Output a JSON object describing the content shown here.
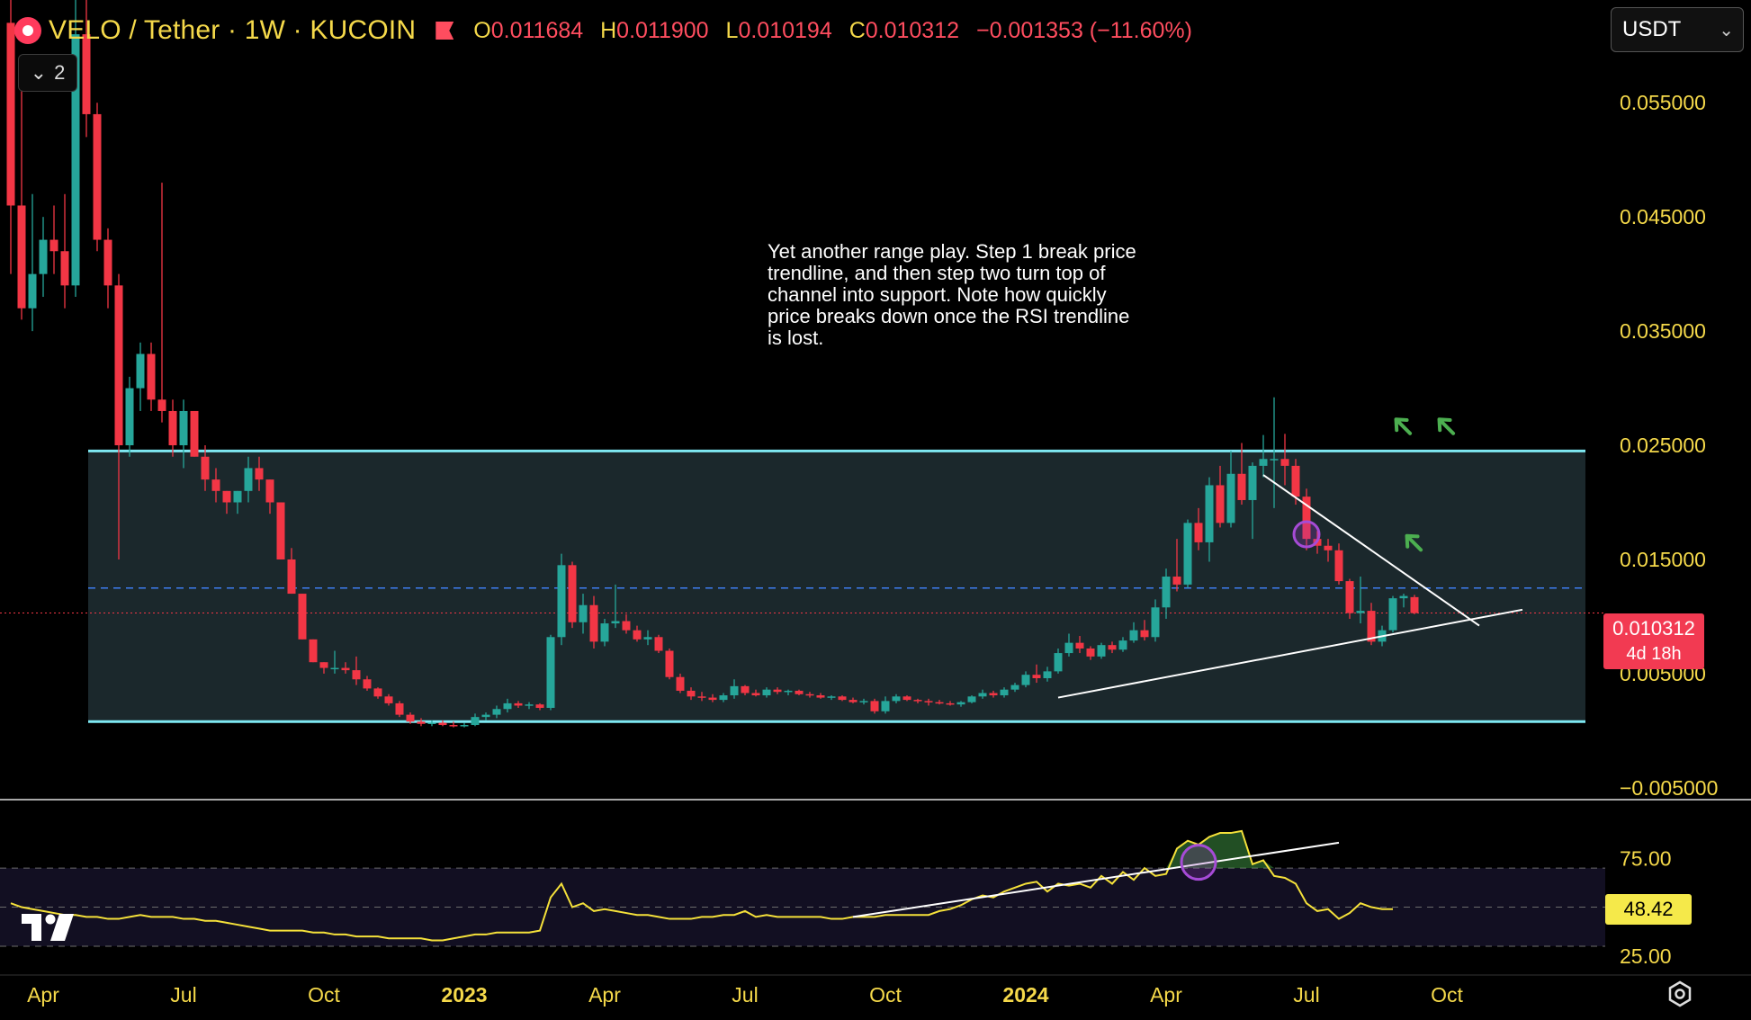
{
  "header": {
    "symbol": "VELO / Tether · 1W · KUCOIN",
    "open_label": "O",
    "open_value": "0.011684",
    "high_label": "H",
    "high_value": "0.011900",
    "low_label": "L",
    "low_value": "0.010194",
    "close_label": "C",
    "close_value": "0.010312",
    "change": "−0.001353 (−11.60%)"
  },
  "collapse_label": "2",
  "currency_select": "USDT",
  "annotation_text": "Yet another range play. Step 1 break price trendline, and then step two turn top of channel into support. Note how quickly price breaks down once the RSI trendline is lost.",
  "price_tag": {
    "price": "0.010312",
    "countdown": "4d 18h"
  },
  "rsi_tag": "48.42",
  "colors": {
    "up": "#26a69a",
    "down": "#f23645",
    "channel": "#7ee8f2",
    "rsi": "#f5e13a",
    "axis_text": "#f5d94a"
  },
  "chart_data": [
    {
      "type": "candlestick",
      "timeframe": "1W",
      "y_axis_labels": [
        "0.055000",
        "0.045000",
        "0.035000",
        "0.025000",
        "0.015000",
        "0.005000",
        "−0.005000"
      ],
      "y_ticks": [
        0.055,
        0.045,
        0.035,
        0.025,
        0.015,
        0.005,
        -0.005
      ],
      "ylim": [
        -0.0058,
        0.064
      ],
      "x_axis_labels": [
        {
          "label": "Apr",
          "bold": false,
          "idx": 3
        },
        {
          "label": "Jul",
          "bold": false,
          "idx": 16
        },
        {
          "label": "Oct",
          "bold": false,
          "idx": 29
        },
        {
          "label": "2023",
          "bold": true,
          "idx": 42
        },
        {
          "label": "Apr",
          "bold": false,
          "idx": 55
        },
        {
          "label": "Jul",
          "bold": false,
          "idx": 68
        },
        {
          "label": "Oct",
          "bold": false,
          "idx": 81
        },
        {
          "label": "2024",
          "bold": true,
          "idx": 94
        },
        {
          "label": "Apr",
          "bold": false,
          "idx": 107
        },
        {
          "label": "Jul",
          "bold": false,
          "idx": 120
        },
        {
          "label": "Oct",
          "bold": false,
          "idx": 133
        }
      ],
      "candles": [
        [
          0.062,
          0.065,
          0.04,
          0.046
        ],
        [
          0.046,
          0.056,
          0.036,
          0.037
        ],
        [
          0.037,
          0.047,
          0.035,
          0.04
        ],
        [
          0.04,
          0.045,
          0.038,
          0.043
        ],
        [
          0.043,
          0.046,
          0.04,
          0.042
        ],
        [
          0.042,
          0.047,
          0.037,
          0.039
        ],
        [
          0.039,
          0.064,
          0.038,
          0.061
        ],
        [
          0.061,
          0.065,
          0.052,
          0.054
        ],
        [
          0.054,
          0.055,
          0.042,
          0.043
        ],
        [
          0.043,
          0.044,
          0.037,
          0.039
        ],
        [
          0.039,
          0.04,
          0.015,
          0.025
        ],
        [
          0.025,
          0.031,
          0.024,
          0.03
        ],
        [
          0.03,
          0.034,
          0.028,
          0.033
        ],
        [
          0.033,
          0.034,
          0.028,
          0.029
        ],
        [
          0.029,
          0.048,
          0.027,
          0.028
        ],
        [
          0.028,
          0.029,
          0.024,
          0.025
        ],
        [
          0.025,
          0.029,
          0.023,
          0.028
        ],
        [
          0.028,
          0.028,
          0.024,
          0.024
        ],
        [
          0.024,
          0.025,
          0.021,
          0.022
        ],
        [
          0.022,
          0.023,
          0.02,
          0.021
        ],
        [
          0.021,
          0.021,
          0.019,
          0.02
        ],
        [
          0.02,
          0.021,
          0.019,
          0.021
        ],
        [
          0.021,
          0.024,
          0.02,
          0.023
        ],
        [
          0.023,
          0.024,
          0.021,
          0.022
        ],
        [
          0.022,
          0.022,
          0.019,
          0.02
        ],
        [
          0.02,
          0.02,
          0.015,
          0.015
        ],
        [
          0.015,
          0.016,
          0.012,
          0.012
        ],
        [
          0.012,
          0.012,
          0.008,
          0.008
        ],
        [
          0.008,
          0.008,
          0.006,
          0.006
        ],
        [
          0.006,
          0.006,
          0.005,
          0.0055
        ],
        [
          0.0055,
          0.007,
          0.005,
          0.0055
        ],
        [
          0.0055,
          0.006,
          0.005,
          0.0053
        ],
        [
          0.0053,
          0.0065,
          0.004,
          0.0045
        ],
        [
          0.0045,
          0.0048,
          0.0035,
          0.0037
        ],
        [
          0.0037,
          0.0038,
          0.0028,
          0.003
        ],
        [
          0.003,
          0.0032,
          0.0022,
          0.0024
        ],
        [
          0.0024,
          0.0026,
          0.0012,
          0.0014
        ],
        [
          0.0014,
          0.0016,
          0.0006,
          0.0008
        ],
        [
          0.0008,
          0.0011,
          0.0004,
          0.0006
        ],
        [
          0.0006,
          0.0009,
          0.0004,
          0.0007
        ],
        [
          0.0007,
          0.0009,
          0.0004,
          0.0005
        ],
        [
          0.0005,
          0.0008,
          0.0003,
          0.0004
        ],
        [
          0.0004,
          0.0007,
          0.0003,
          0.0005
        ],
        [
          0.0005,
          0.0015,
          0.0004,
          0.0012
        ],
        [
          0.0012,
          0.0016,
          0.0009,
          0.0014
        ],
        [
          0.0014,
          0.0022,
          0.0011,
          0.0019
        ],
        [
          0.0019,
          0.0028,
          0.0016,
          0.0024
        ],
        [
          0.0024,
          0.0026,
          0.002,
          0.0022
        ],
        [
          0.0022,
          0.0025,
          0.0019,
          0.0023
        ],
        [
          0.0023,
          0.0024,
          0.0018,
          0.002
        ],
        [
          0.002,
          0.0084,
          0.0018,
          0.0082
        ],
        [
          0.0082,
          0.0155,
          0.0075,
          0.0145
        ],
        [
          0.0145,
          0.0148,
          0.009,
          0.0095
        ],
        [
          0.0095,
          0.012,
          0.0085,
          0.011
        ],
        [
          0.011,
          0.0118,
          0.0072,
          0.0078
        ],
        [
          0.0078,
          0.0098,
          0.0074,
          0.0094
        ],
        [
          0.0094,
          0.0128,
          0.009,
          0.0096
        ],
        [
          0.0096,
          0.0102,
          0.0085,
          0.0088
        ],
        [
          0.0088,
          0.0092,
          0.0078,
          0.008
        ],
        [
          0.008,
          0.0088,
          0.0075,
          0.0082
        ],
        [
          0.0082,
          0.0084,
          0.0068,
          0.007
        ],
        [
          0.007,
          0.0072,
          0.0045,
          0.0047
        ],
        [
          0.0047,
          0.005,
          0.0033,
          0.0035
        ],
        [
          0.0035,
          0.0038,
          0.0027,
          0.003
        ],
        [
          0.003,
          0.0034,
          0.0026,
          0.0029
        ],
        [
          0.0029,
          0.0032,
          0.0025,
          0.0027
        ],
        [
          0.0027,
          0.0033,
          0.0025,
          0.0031
        ],
        [
          0.0031,
          0.0045,
          0.0028,
          0.0039
        ],
        [
          0.0039,
          0.004,
          0.0031,
          0.0033
        ],
        [
          0.0033,
          0.0036,
          0.003,
          0.0031
        ],
        [
          0.0031,
          0.0038,
          0.0029,
          0.0036
        ],
        [
          0.0036,
          0.0038,
          0.0032,
          0.0034
        ],
        [
          0.0034,
          0.0036,
          0.0031,
          0.0035
        ],
        [
          0.0035,
          0.0036,
          0.0031,
          0.0032
        ],
        [
          0.0032,
          0.0034,
          0.0029,
          0.0031
        ],
        [
          0.0031,
          0.0033,
          0.0028,
          0.0029
        ],
        [
          0.0029,
          0.0031,
          0.0027,
          0.003
        ],
        [
          0.003,
          0.0031,
          0.0026,
          0.0027
        ],
        [
          0.0027,
          0.0029,
          0.0024,
          0.0025
        ],
        [
          0.0025,
          0.0028,
          0.0023,
          0.0026
        ],
        [
          0.0026,
          0.0028,
          0.0015,
          0.0017
        ],
        [
          0.0017,
          0.003,
          0.0015,
          0.0026
        ],
        [
          0.0026,
          0.0032,
          0.0024,
          0.003
        ],
        [
          0.003,
          0.0031,
          0.0026,
          0.0027
        ],
        [
          0.0027,
          0.0028,
          0.0024,
          0.0026
        ],
        [
          0.0026,
          0.0028,
          0.0022,
          0.0025
        ],
        [
          0.0025,
          0.0027,
          0.0023,
          0.0024
        ],
        [
          0.0024,
          0.0026,
          0.0022,
          0.0023
        ],
        [
          0.0023,
          0.0026,
          0.0021,
          0.0025
        ],
        [
          0.0025,
          0.0031,
          0.0024,
          0.003
        ],
        [
          0.003,
          0.0036,
          0.0028,
          0.0033
        ],
        [
          0.0033,
          0.0035,
          0.0029,
          0.0031
        ],
        [
          0.0031,
          0.0038,
          0.0029,
          0.0036
        ],
        [
          0.0036,
          0.0042,
          0.0034,
          0.004
        ],
        [
          0.004,
          0.0052,
          0.0038,
          0.0049
        ],
        [
          0.0049,
          0.0058,
          0.0042,
          0.0046
        ],
        [
          0.0046,
          0.0056,
          0.0043,
          0.0052
        ],
        [
          0.0052,
          0.0072,
          0.005,
          0.0068
        ],
        [
          0.0068,
          0.0085,
          0.0065,
          0.0077
        ],
        [
          0.0077,
          0.0083,
          0.0068,
          0.0072
        ],
        [
          0.0072,
          0.0074,
          0.0062,
          0.0065
        ],
        [
          0.0065,
          0.0077,
          0.0063,
          0.0075
        ],
        [
          0.0075,
          0.0078,
          0.0068,
          0.0071
        ],
        [
          0.0071,
          0.0082,
          0.0069,
          0.0079
        ],
        [
          0.0079,
          0.0095,
          0.0077,
          0.0088
        ],
        [
          0.0088,
          0.0097,
          0.0079,
          0.0082
        ],
        [
          0.0082,
          0.0115,
          0.0078,
          0.0108
        ],
        [
          0.0108,
          0.0142,
          0.0098,
          0.0135
        ],
        [
          0.0135,
          0.0168,
          0.0122,
          0.0128
        ],
        [
          0.0128,
          0.0185,
          0.0125,
          0.0182
        ],
        [
          0.0182,
          0.0195,
          0.0158,
          0.0165
        ],
        [
          0.0165,
          0.0222,
          0.0148,
          0.0215
        ],
        [
          0.0215,
          0.0232,
          0.0178,
          0.0182
        ],
        [
          0.0182,
          0.0245,
          0.0178,
          0.0225
        ],
        [
          0.0225,
          0.0252,
          0.0198,
          0.0202
        ],
        [
          0.0202,
          0.0235,
          0.0168,
          0.0232
        ],
        [
          0.0232,
          0.0259,
          0.0222,
          0.0238
        ],
        [
          0.0238,
          0.0292,
          0.0195,
          0.0238
        ],
        [
          0.0238,
          0.026,
          0.0215,
          0.0232
        ],
        [
          0.0232,
          0.0238,
          0.0198,
          0.0205
        ],
        [
          0.0205,
          0.0212,
          0.0158,
          0.0168
        ],
        [
          0.0168,
          0.0175,
          0.0155,
          0.0162
        ],
        [
          0.0162,
          0.0168,
          0.0148,
          0.0158
        ],
        [
          0.0158,
          0.0164,
          0.0128,
          0.0131
        ],
        [
          0.0131,
          0.0133,
          0.0098,
          0.0103
        ],
        [
          0.0103,
          0.0135,
          0.0094,
          0.0105
        ],
        [
          0.0105,
          0.0112,
          0.0075,
          0.0078
        ],
        [
          0.0078,
          0.0092,
          0.0074,
          0.0088
        ],
        [
          0.0088,
          0.0118,
          0.0086,
          0.0116
        ],
        [
          0.0116,
          0.012,
          0.0108,
          0.0118
        ],
        [
          0.0117,
          0.0119,
          0.0102,
          0.0103
        ]
      ],
      "annotations": {
        "channel_top": 0.0245,
        "channel_bottom": 0.0008,
        "dashed_level": 0.0125,
        "current_price": 0.010312,
        "rising_trendline": [
          [
            97,
            0.0029
          ],
          [
            140,
            0.0106
          ]
        ],
        "falling_trendline": [
          [
            116,
            0.0224
          ],
          [
            136,
            0.0092
          ]
        ],
        "circle_marker": [
          120,
          0.0172
        ],
        "arrows": [
          [
            129,
            0.0266
          ],
          [
            133,
            0.0266
          ],
          [
            130,
            0.0164
          ]
        ]
      }
    },
    {
      "type": "line",
      "name": "RSI",
      "y_axis_labels": [
        "75.00",
        "25.00"
      ],
      "y_ticks": [
        75,
        25
      ],
      "levels": [
        70,
        50,
        30
      ],
      "ylim": [
        18,
        100
      ],
      "values": [
        52,
        50,
        49,
        48,
        47,
        46,
        46,
        45,
        45,
        44,
        44,
        45,
        46,
        45,
        45,
        45,
        44,
        44,
        43,
        43,
        42,
        41,
        40,
        39,
        38,
        38,
        38,
        38,
        37,
        37,
        36,
        36,
        35,
        35,
        35,
        34,
        34,
        34,
        34,
        33,
        33,
        34,
        35,
        36,
        36,
        37,
        37,
        37,
        37,
        38,
        55,
        62,
        50,
        52,
        48,
        49,
        48,
        47,
        46,
        46,
        45,
        44,
        44,
        44,
        45,
        45,
        46,
        46,
        48,
        45,
        46,
        45,
        45,
        45,
        45,
        45,
        44,
        44,
        45,
        45,
        45,
        46,
        46,
        46,
        46,
        46,
        48,
        49,
        51,
        54,
        56,
        55,
        58,
        60,
        62,
        63,
        58,
        62,
        61,
        62,
        60,
        66,
        62,
        68,
        64,
        70,
        66,
        67,
        80,
        84,
        82,
        86,
        88,
        88,
        89,
        72,
        74,
        66,
        65,
        62,
        52,
        48,
        49,
        44,
        47,
        52,
        50,
        49,
        49
      ],
      "trendline": [
        [
          78,
          45
        ],
        [
          123,
          83
        ]
      ],
      "circle_marker": [
        110,
        73
      ]
    }
  ]
}
